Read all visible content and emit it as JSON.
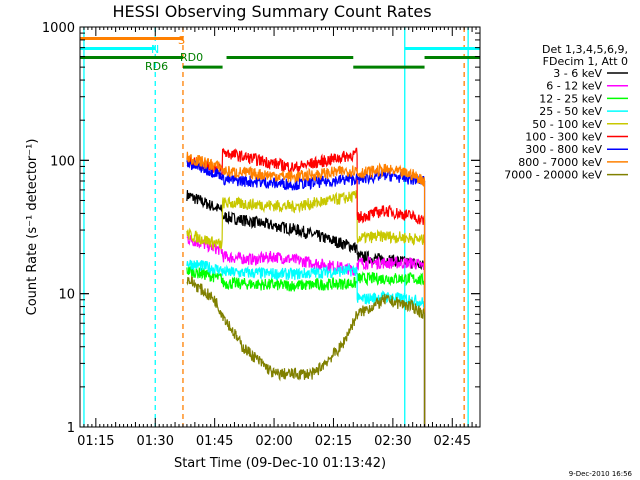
{
  "chart_data": {
    "type": "line",
    "title": "HESSI Observing Summary Count Rates",
    "xlabel": "Start Time (09-Dec-10 01:13:42)",
    "ylabel": "Count Rate (s⁻¹ detector⁻¹)",
    "yscale": "log",
    "xlim": [
      "01:11",
      "02:52"
    ],
    "ylim": [
      1,
      1000
    ],
    "x_ticks": [
      "01:15",
      "01:30",
      "01:45",
      "02:00",
      "02:15",
      "02:30",
      "02:45"
    ],
    "y_ticks": [
      "1",
      "10",
      "100",
      "1000"
    ],
    "grid": false,
    "legend_position": "right",
    "legend_header": [
      "Det 1,3,4,5,6,9,",
      "FDecim 1, Att 0"
    ],
    "series": [
      {
        "name": "3 - 6 keV",
        "color": "#000000",
        "x": [
          "01:38",
          "01:47",
          "01:47",
          "02:06",
          "02:21",
          "02:21",
          "02:28",
          "02:35",
          "02:38"
        ],
        "y": [
          55,
          42,
          38,
          30,
          22,
          19,
          18,
          17,
          16
        ]
      },
      {
        "name": "6 - 12 keV",
        "color": "#ff00ff",
        "x": [
          "01:38",
          "01:47",
          "01:47",
          "01:55",
          "02:00",
          "02:21",
          "02:21",
          "02:35",
          "02:38"
        ],
        "y": [
          26,
          21,
          19,
          18,
          19,
          15,
          17,
          17,
          16
        ]
      },
      {
        "name": "12 - 25 keV",
        "color": "#00ff00",
        "x": [
          "01:38",
          "01:47",
          "01:47",
          "02:05",
          "02:21",
          "02:21",
          "02:28",
          "02:35",
          "02:38"
        ],
        "y": [
          15,
          13,
          12,
          11.5,
          12,
          13,
          13,
          13,
          12.5
        ]
      },
      {
        "name": "25 - 50 keV",
        "color": "#00ffff",
        "x": [
          "01:38",
          "01:47",
          "01:47",
          "02:05",
          "02:21",
          "02:21",
          "02:28",
          "02:35",
          "02:38"
        ],
        "y": [
          17,
          15,
          14.5,
          14,
          15,
          9,
          9.5,
          9,
          8.5
        ]
      },
      {
        "name": "50 - 100 keV",
        "color": "#c8c800",
        "x": [
          "01:38",
          "01:47",
          "01:47",
          "02:05",
          "02:21",
          "02:21",
          "02:28",
          "02:35",
          "02:38"
        ],
        "y": [
          28,
          23,
          48,
          45,
          54,
          26,
          27,
          26,
          25
        ]
      },
      {
        "name": "100 - 300 keV",
        "color": "#ff0000",
        "x": [
          "01:38",
          "01:47",
          "01:47",
          "02:05",
          "02:21",
          "02:21",
          "02:28",
          "02:35",
          "02:38"
        ],
        "y": [
          100,
          85,
          115,
          88,
          112,
          37,
          42,
          38,
          35
        ]
      },
      {
        "name": "300 - 800 keV",
        "color": "#0000ff",
        "x": [
          "01:38",
          "01:47",
          "01:47",
          "02:05",
          "02:21",
          "02:21",
          "02:28",
          "02:35",
          "02:38"
        ],
        "y": [
          95,
          78,
          72,
          66,
          73,
          72,
          78,
          72,
          70
        ]
      },
      {
        "name": "800 - 7000 keV",
        "color": "#ff8000",
        "x": [
          "01:38",
          "01:47",
          "01:47",
          "02:05",
          "02:21",
          "02:21",
          "02:28",
          "02:35",
          "02:38"
        ],
        "y": [
          105,
          88,
          83,
          75,
          85,
          80,
          85,
          78,
          70
        ]
      },
      {
        "name": "7000 - 20000 keV",
        "color": "#808000",
        "x": [
          "01:38",
          "01:45",
          "01:47",
          "01:52",
          "02:00",
          "02:10",
          "02:17",
          "02:21",
          "02:28",
          "02:35",
          "02:38"
        ],
        "y": [
          13,
          9,
          7,
          4,
          2.5,
          2.5,
          4,
          7,
          9,
          8,
          7
        ]
      }
    ],
    "annotations": [
      {
        "text": "S",
        "color": "#ff8000"
      },
      {
        "text": "N",
        "color": "#00ffff"
      },
      {
        "text": "RD0",
        "color": "#008000"
      },
      {
        "text": "RD6",
        "color": "#008000"
      }
    ],
    "flags": [
      {
        "name": "S",
        "color": "#ff8000",
        "level": 820,
        "segments": [
          [
            "01:11",
            "01:37"
          ]
        ]
      },
      {
        "name": "N",
        "color": "#00ffff",
        "level": 690,
        "segments": [
          [
            "01:11",
            "01:30"
          ],
          [
            "02:33",
            "02:52"
          ]
        ]
      },
      {
        "name": "RD",
        "color": "#008000",
        "level": 590,
        "segments": [
          [
            "01:11",
            "01:37"
          ],
          [
            "01:48",
            "02:20"
          ],
          [
            "02:38",
            "02:52"
          ]
        ]
      },
      {
        "name": "RD",
        "color": "#008000",
        "level": 500,
        "segments": [
          [
            "01:37",
            "01:47"
          ],
          [
            "02:20",
            "02:38"
          ]
        ]
      }
    ],
    "vlines": [
      {
        "time": "01:12",
        "color": "#00ffff",
        "style": "solid"
      },
      {
        "time": "01:30",
        "color": "#00ffff",
        "style": "dashed"
      },
      {
        "time": "01:37",
        "color": "#ff8000",
        "style": "dashed"
      },
      {
        "time": "02:33",
        "color": "#00ffff",
        "style": "solid"
      },
      {
        "time": "02:48",
        "color": "#ff8000",
        "style": "dashed"
      },
      {
        "time": "02:49",
        "color": "#00ffff",
        "style": "solid"
      }
    ],
    "footer": "9-Dec-2010 16:56"
  }
}
